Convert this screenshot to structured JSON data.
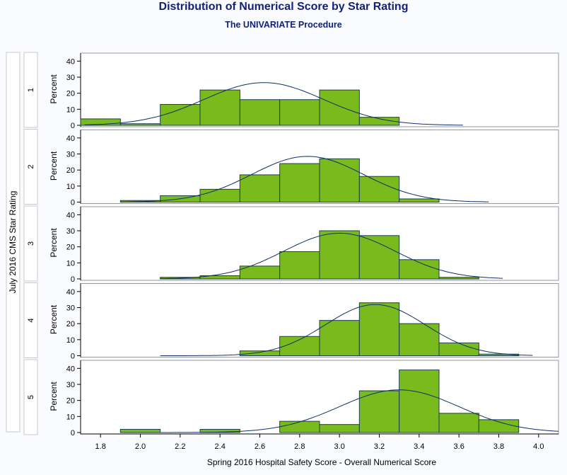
{
  "title": "Distribution of Numerical Score by Star Rating",
  "subtitle": "The UNIVARIATE Procedure",
  "colors": {
    "background": "#fafbfe",
    "panel_bg": "#ffffff",
    "bar_fill": "#79bb1d",
    "bar_stroke": "#1d3f4a",
    "curve": "#0f2f6a",
    "title": "#112277",
    "frame": "#999999"
  },
  "chart_data": {
    "type": "bar",
    "title": "Distribution of Numerical Score by Star Rating",
    "subtitle": "The UNIVARIATE Procedure",
    "row_label": "July 2016 CMS Star Rating",
    "xlabel": "Spring 2016 Hospital Safety Score - Overall Numerical Score",
    "ylabel": "Percent",
    "xlim": [
      1.7,
      4.1
    ],
    "ylim": [
      0,
      45
    ],
    "x_ticks": [
      "1.8",
      "2.0",
      "2.2",
      "2.4",
      "2.6",
      "2.8",
      "3.0",
      "3.2",
      "3.4",
      "3.6",
      "3.8",
      "4.0"
    ],
    "y_ticks": [
      "0",
      "10",
      "20",
      "30",
      "40"
    ],
    "bin_width": 0.2,
    "bin_centers": [
      1.8,
      2.0,
      2.2,
      2.4,
      2.6,
      2.8,
      3.0,
      3.2,
      3.4,
      3.6,
      3.8
    ],
    "curve": "normal",
    "panels": [
      {
        "label": "1",
        "values": [
          4,
          1,
          13,
          22,
          16,
          16,
          22,
          5,
          0,
          0,
          0
        ],
        "curve_mean": 2.62,
        "curve_sd": 0.3,
        "curve_range": [
          1.72,
          3.62
        ]
      },
      {
        "label": "2",
        "values": [
          0,
          1,
          4,
          8,
          17,
          24,
          27,
          16,
          2,
          0,
          0
        ],
        "curve_mean": 2.84,
        "curve_sd": 0.28,
        "curve_range": [
          1.9,
          3.75
        ]
      },
      {
        "label": "3",
        "values": [
          0,
          0,
          1,
          2,
          8,
          17,
          30,
          27,
          12,
          1,
          0
        ],
        "curve_mean": 3.0,
        "curve_sd": 0.28,
        "curve_range": [
          2.1,
          3.82
        ]
      },
      {
        "label": "4",
        "values": [
          0,
          0,
          0,
          0,
          3,
          12,
          22,
          33,
          20,
          8,
          1
        ],
        "curve_mean": 3.18,
        "curve_sd": 0.25,
        "curve_range": [
          2.1,
          3.97
        ]
      },
      {
        "label": "5",
        "values": [
          0,
          2,
          0,
          2,
          0,
          7,
          5,
          26,
          39,
          12,
          8
        ],
        "curve_mean": 3.3,
        "curve_sd": 0.3,
        "curve_range": [
          1.9,
          4.1
        ]
      }
    ]
  }
}
